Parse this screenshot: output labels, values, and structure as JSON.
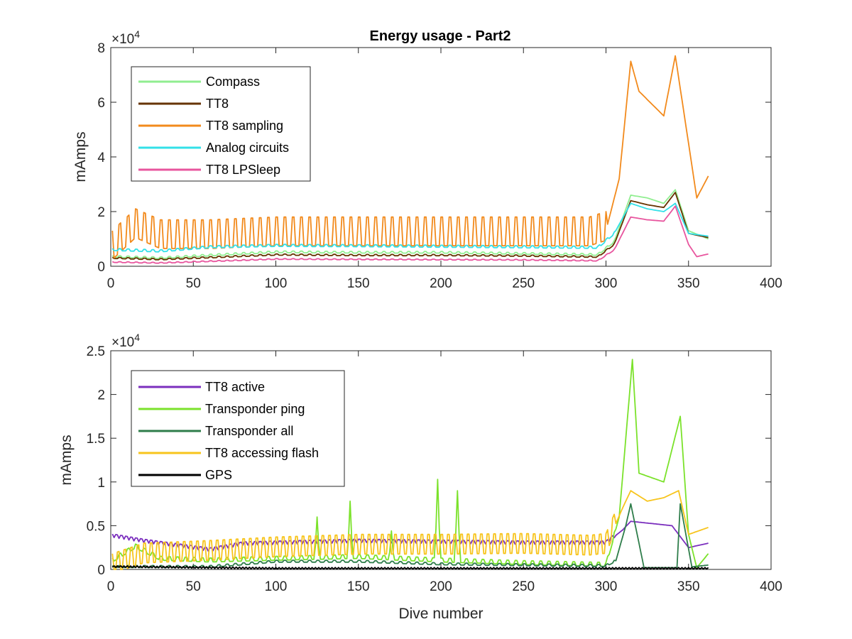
{
  "chart_data": [
    {
      "type": "line",
      "title": "Energy usage - Part2",
      "xlabel": "",
      "ylabel": "mAmps",
      "y_exponent_prefix": "×10",
      "y_exponent": "4",
      "xlim": [
        0,
        400
      ],
      "ylim": [
        0,
        80000
      ],
      "x_ticks": [
        0,
        50,
        100,
        150,
        200,
        250,
        300,
        350,
        400
      ],
      "x_tick_labels": [
        "0",
        "50",
        "100",
        "150",
        "200",
        "250",
        "300",
        "350",
        "400"
      ],
      "y_ticks": [
        0,
        20000,
        40000,
        60000,
        80000
      ],
      "y_tick_labels": [
        "0",
        "2",
        "4",
        "6",
        "8"
      ],
      "legend_position": "top-left",
      "grid": false,
      "x_range": [
        1,
        362
      ],
      "series": [
        {
          "name": "Compass",
          "color": "#90ee90",
          "anchors": [
            [
              1,
              3500
            ],
            [
              30,
              3000
            ],
            [
              60,
              4000
            ],
            [
              100,
              5200
            ],
            [
              150,
              5000
            ],
            [
              200,
              5000
            ],
            [
              250,
              4600
            ],
            [
              295,
              4200
            ],
            [
              305,
              9000
            ],
            [
              315,
              26000
            ],
            [
              325,
              25000
            ],
            [
              335,
              23000
            ],
            [
              342,
              28000
            ],
            [
              350,
              13000
            ],
            [
              362,
              10000
            ]
          ],
          "osc": {
            "period": 5,
            "amp": 400,
            "until": 305
          }
        },
        {
          "name": "TT8",
          "color": "#663300",
          "anchors": [
            [
              1,
              3000
            ],
            [
              30,
              2500
            ],
            [
              60,
              3200
            ],
            [
              100,
              4200
            ],
            [
              150,
              4000
            ],
            [
              200,
              4000
            ],
            [
              250,
              3800
            ],
            [
              295,
              3400
            ],
            [
              305,
              8000
            ],
            [
              315,
              24000
            ],
            [
              325,
              22500
            ],
            [
              335,
              21500
            ],
            [
              342,
              27000
            ],
            [
              350,
              12000
            ],
            [
              362,
              10500
            ]
          ],
          "osc": {
            "period": 5,
            "amp": 300,
            "until": 305
          }
        },
        {
          "name": "TT8 sampling",
          "color": "#f28a1c",
          "anchors": [
            [
              1,
              6000
            ],
            [
              15,
              14000
            ],
            [
              30,
              10000
            ],
            [
              60,
              10000
            ],
            [
              100,
              11000
            ],
            [
              150,
              11000
            ],
            [
              200,
              11000
            ],
            [
              250,
              11000
            ],
            [
              290,
              11000
            ],
            [
              300,
              13000
            ],
            [
              308,
              32000
            ],
            [
              315,
              75000
            ],
            [
              320,
              64000
            ],
            [
              330,
              58000
            ],
            [
              335,
              55000
            ],
            [
              342,
              77000
            ],
            [
              350,
              45000
            ],
            [
              355,
              25000
            ],
            [
              362,
              33000
            ]
          ],
          "osc": {
            "period": 5,
            "amp": 7000,
            "until": 300
          }
        },
        {
          "name": "Analog circuits",
          "color": "#33e0e8",
          "anchors": [
            [
              1,
              6000
            ],
            [
              30,
              5500
            ],
            [
              60,
              7000
            ],
            [
              100,
              7500
            ],
            [
              150,
              7400
            ],
            [
              200,
              7200
            ],
            [
              250,
              7000
            ],
            [
              295,
              6800
            ],
            [
              305,
              12000
            ],
            [
              315,
              23000
            ],
            [
              325,
              21000
            ],
            [
              335,
              20000
            ],
            [
              342,
              23000
            ],
            [
              350,
              12000
            ],
            [
              362,
              11000
            ]
          ],
          "osc": {
            "period": 5,
            "amp": 500,
            "until": 305
          }
        },
        {
          "name": "TT8 LPSleep",
          "color": "#e8559e",
          "anchors": [
            [
              1,
              1500
            ],
            [
              30,
              1200
            ],
            [
              60,
              1800
            ],
            [
              100,
              2600
            ],
            [
              150,
              2500
            ],
            [
              200,
              2400
            ],
            [
              250,
              2300
            ],
            [
              295,
              2000
            ],
            [
              305,
              6000
            ],
            [
              315,
              18000
            ],
            [
              325,
              17000
            ],
            [
              335,
              16500
            ],
            [
              342,
              22000
            ],
            [
              350,
              8000
            ],
            [
              355,
              3500
            ],
            [
              362,
              4500
            ]
          ],
          "osc": {
            "period": 5,
            "amp": 200,
            "until": 305
          }
        }
      ]
    },
    {
      "type": "line",
      "title": "",
      "xlabel": "Dive number",
      "ylabel": "mAmps",
      "y_exponent_prefix": "×10",
      "y_exponent": "4",
      "xlim": [
        0,
        400
      ],
      "ylim": [
        0,
        25000
      ],
      "x_ticks": [
        0,
        50,
        100,
        150,
        200,
        250,
        300,
        350,
        400
      ],
      "x_tick_labels": [
        "0",
        "50",
        "100",
        "150",
        "200",
        "250",
        "300",
        "350",
        "400"
      ],
      "y_ticks": [
        0,
        5000,
        10000,
        15000,
        20000,
        25000
      ],
      "y_tick_labels": [
        "0",
        "0.5",
        "1",
        "1.5",
        "2",
        "2.5"
      ],
      "legend_position": "top-left",
      "grid": false,
      "x_range": [
        1,
        362
      ],
      "series": [
        {
          "name": "TT8 active",
          "color": "#7b2fbe",
          "anchors": [
            [
              1,
              3800
            ],
            [
              20,
              3200
            ],
            [
              60,
              2200
            ],
            [
              80,
              2900
            ],
            [
              150,
              3200
            ],
            [
              200,
              3100
            ],
            [
              250,
              3000
            ],
            [
              300,
              3000
            ],
            [
              310,
              4500
            ],
            [
              315,
              5500
            ],
            [
              340,
              5000
            ],
            [
              350,
              2500
            ],
            [
              362,
              3000
            ]
          ],
          "osc": {
            "period": 3,
            "amp": 250,
            "until": 305
          }
        },
        {
          "name": "Transponder ping",
          "color": "#7be22b",
          "anchors": [
            [
              1,
              1000
            ],
            [
              15,
              2600
            ],
            [
              30,
              1200
            ],
            [
              60,
              1000
            ],
            [
              100,
              1200
            ],
            [
              150,
              1400
            ],
            [
              200,
              1000
            ],
            [
              250,
              700
            ],
            [
              300,
              500
            ],
            [
              308,
              6000
            ],
            [
              316,
              24000
            ],
            [
              320,
              11000
            ],
            [
              335,
              10000
            ],
            [
              345,
              17500
            ],
            [
              350,
              4000
            ],
            [
              355,
              200
            ],
            [
              362,
              1800
            ]
          ],
          "osc": {
            "period": 5,
            "amp": 300,
            "until": 305
          },
          "spikes": [
            [
              125,
              6000
            ],
            [
              145,
              7800
            ],
            [
              170,
              4400
            ],
            [
              198,
              10300
            ],
            [
              210,
              9000
            ]
          ]
        },
        {
          "name": "Transponder all",
          "color": "#2e7d4a",
          "anchors": [
            [
              1,
              300
            ],
            [
              60,
              300
            ],
            [
              100,
              900
            ],
            [
              150,
              900
            ],
            [
              200,
              600
            ],
            [
              250,
              500
            ],
            [
              300,
              400
            ],
            [
              306,
              1000
            ],
            [
              312,
              5000
            ],
            [
              315,
              7500
            ],
            [
              320,
              3000
            ],
            [
              323,
              200
            ],
            [
              343,
              200
            ],
            [
              345,
              7500
            ],
            [
              352,
              300
            ],
            [
              362,
              500
            ]
          ],
          "osc": {
            "period": 5,
            "amp": 150,
            "until": 305
          }
        },
        {
          "name": "TT8 accessing flash",
          "color": "#f7c41c",
          "anchors": [
            [
              1,
              300
            ],
            [
              20,
              1500
            ],
            [
              60,
              1800
            ],
            [
              100,
              2200
            ],
            [
              150,
              2500
            ],
            [
              200,
              2500
            ],
            [
              250,
              2600
            ],
            [
              290,
              2400
            ],
            [
              300,
              2600
            ],
            [
              310,
              7000
            ],
            [
              315,
              9000
            ],
            [
              325,
              7800
            ],
            [
              335,
              8200
            ],
            [
              344,
              9000
            ],
            [
              350,
              4000
            ],
            [
              362,
              4800
            ]
          ],
          "osc": {
            "period": 4,
            "amp": 1500,
            "until": 305
          }
        },
        {
          "name": "GPS",
          "color": "#000000",
          "anchors": [
            [
              1,
              300
            ],
            [
              100,
              100
            ],
            [
              200,
              100
            ],
            [
              300,
              100
            ],
            [
              362,
              100
            ]
          ],
          "osc": {
            "period": 2,
            "amp": 120,
            "until": 362
          }
        }
      ]
    }
  ]
}
